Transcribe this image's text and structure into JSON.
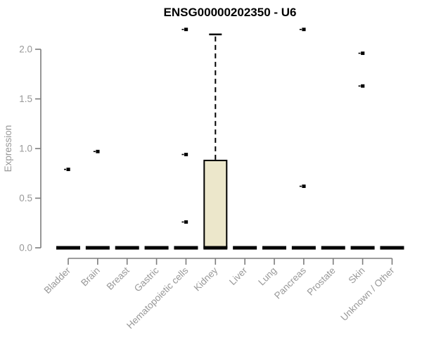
{
  "chart_data": {
    "type": "box",
    "title": "ENSG00000202350 - U6",
    "xlabel": "",
    "ylabel": "Expression",
    "ylim": [
      0,
      2.2
    ],
    "yticks": [
      0.0,
      0.5,
      1.0,
      1.5,
      2.0
    ],
    "ytick_labels": [
      "0.0",
      "0.5",
      "1.0",
      "1.5",
      "2.0"
    ],
    "categories": [
      "Bladder",
      "Brain",
      "Breast",
      "Gastric",
      "Hematopoietic cells",
      "Kidney",
      "Liver",
      "Lung",
      "Pancreas",
      "Prostate",
      "Skin",
      "Unknown / Other"
    ],
    "series": [
      {
        "category": "Bladder",
        "whisker_low": 0,
        "q1": 0,
        "median": 0,
        "q3": 0,
        "whisker_high": 0,
        "outliers": [
          0.79
        ]
      },
      {
        "category": "Brain",
        "whisker_low": 0,
        "q1": 0,
        "median": 0,
        "q3": 0,
        "whisker_high": 0,
        "outliers": [
          0.97
        ]
      },
      {
        "category": "Breast",
        "whisker_low": 0,
        "q1": 0,
        "median": 0,
        "q3": 0,
        "whisker_high": 0,
        "outliers": []
      },
      {
        "category": "Gastric",
        "whisker_low": 0,
        "q1": 0,
        "median": 0,
        "q3": 0,
        "whisker_high": 0,
        "outliers": []
      },
      {
        "category": "Hematopoietic cells",
        "whisker_low": 0,
        "q1": 0,
        "median": 0,
        "q3": 0,
        "whisker_high": 0,
        "outliers": [
          2.2,
          0.94,
          0.26
        ]
      },
      {
        "category": "Kidney",
        "whisker_low": 0,
        "q1": 0,
        "median": 0,
        "q3": 0.88,
        "whisker_high": 2.15,
        "outliers": []
      },
      {
        "category": "Liver",
        "whisker_low": 0,
        "q1": 0,
        "median": 0,
        "q3": 0,
        "whisker_high": 0,
        "outliers": []
      },
      {
        "category": "Lung",
        "whisker_low": 0,
        "q1": 0,
        "median": 0,
        "q3": 0,
        "whisker_high": 0,
        "outliers": []
      },
      {
        "category": "Pancreas",
        "whisker_low": 0,
        "q1": 0,
        "median": 0,
        "q3": 0,
        "whisker_high": 0,
        "outliers": [
          2.2,
          0.62
        ]
      },
      {
        "category": "Prostate",
        "whisker_low": 0,
        "q1": 0,
        "median": 0,
        "q3": 0,
        "whisker_high": 0,
        "outliers": []
      },
      {
        "category": "Skin",
        "whisker_low": 0,
        "q1": 0,
        "median": 0,
        "q3": 0,
        "whisker_high": 0,
        "outliers": [
          1.96,
          1.63
        ]
      },
      {
        "category": "Unknown / Other",
        "whisker_low": 0,
        "q1": 0,
        "median": 0,
        "q3": 0,
        "whisker_high": 0,
        "outliers": []
      }
    ],
    "legend": null,
    "grid": false,
    "colors": {
      "box_fill": "#ECE7CB",
      "box_stroke": "#000000",
      "median": "#000000",
      "whisker": "#000000",
      "outlier": "#000000",
      "axis_line": "#7d7d7d",
      "tick_label": "#989898",
      "title": "#000000",
      "background": "#ffffff"
    }
  }
}
